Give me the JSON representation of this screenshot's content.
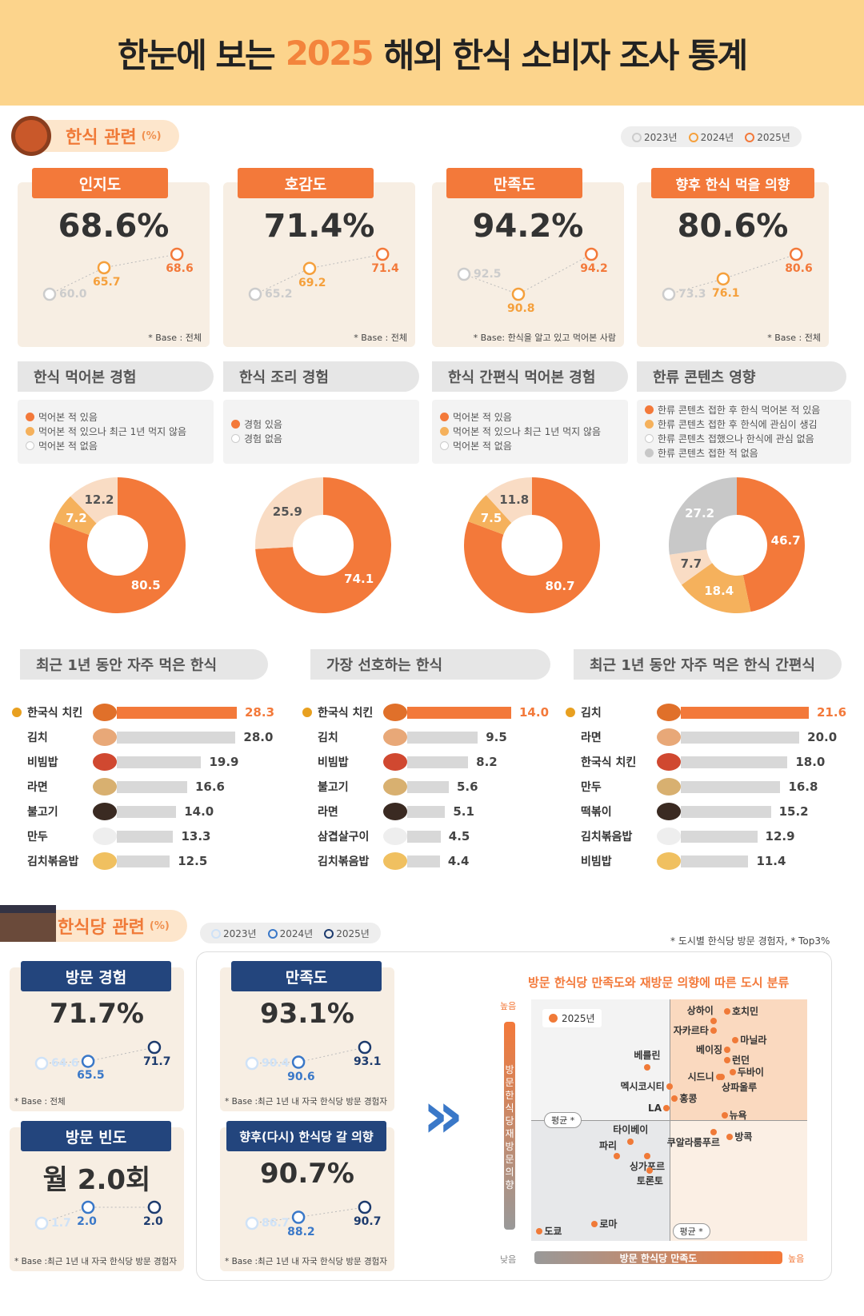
{
  "title": {
    "pre": "한눈에 보는",
    "year": "2025",
    "post": "해외 한식 소비자 조사 통계"
  },
  "section1": {
    "label": "한식 관련",
    "unit": "(%)",
    "legend": [
      "2023년",
      "2024년",
      "2025년"
    ]
  },
  "kpis": [
    {
      "tab": "인지도",
      "value": "68.6%",
      "points": [
        60.0,
        65.7,
        68.6
      ],
      "labels": [
        "60.0",
        "65.7",
        "68.6"
      ],
      "base": "* Base : 전체"
    },
    {
      "tab": "호감도",
      "value": "71.4%",
      "points": [
        65.2,
        69.2,
        71.4
      ],
      "labels": [
        "65.2",
        "69.2",
        "71.4"
      ],
      "base": "* Base : 전체"
    },
    {
      "tab": "만족도",
      "value": "94.2%",
      "points": [
        92.5,
        90.8,
        94.2
      ],
      "labels": [
        "92.5",
        "90.8",
        "94.2"
      ],
      "base": "* Base: 한식을 알고 있고 먹어본 사람"
    },
    {
      "tab": "향후 한식 먹을 의향",
      "value": "80.6%",
      "points": [
        73.3,
        76.1,
        80.6
      ],
      "labels": [
        "73.3",
        "76.1",
        "80.6"
      ],
      "base": "* Base : 전체"
    }
  ],
  "experience": [
    {
      "title": "한식 먹어본 경험",
      "legend": [
        "먹어본 적 있음",
        "먹어본 적 있으나 최근 1년 먹지 않음",
        "먹어본 적 없음"
      ],
      "values": [
        80.5,
        7.2,
        12.2
      ],
      "labels": [
        "80.5",
        "7.2",
        "12.2"
      ]
    },
    {
      "title": "한식 조리 경험",
      "legend": [
        "경험 있음",
        "경험 없음"
      ],
      "values": [
        74.1,
        25.9
      ],
      "labels": [
        "74.1",
        "25.9"
      ]
    },
    {
      "title": "한식 간편식 먹어본 경험",
      "legend": [
        "먹어본 적 있음",
        "먹어본 적 있으나 최근 1년 먹지 않음",
        "먹어본 적 없음"
      ],
      "values": [
        80.7,
        7.5,
        11.8
      ],
      "labels": [
        "80.7",
        "7.5",
        "11.8"
      ]
    },
    {
      "title": "한류 콘텐츠 영향",
      "legend": [
        "한류 콘텐츠 접한 후 한식 먹어본 적 있음",
        "한류 콘텐츠 접한 후 한식에 관심이 생김",
        "한류 콘텐츠 접했으나 한식에 관심 없음",
        "한류 콘텐츠 접한 적 없음"
      ],
      "values": [
        46.7,
        18.4,
        7.7,
        27.2
      ],
      "labels": [
        "46.7",
        "18.4",
        "7.7",
        "27.2"
      ]
    }
  ],
  "rankings": [
    {
      "title": "최근 1년 동안 자주 먹은 한식",
      "items": [
        [
          "한국식 치킨",
          "28.3"
        ],
        [
          "김치",
          "28.0"
        ],
        [
          "비빔밥",
          "19.9"
        ],
        [
          "라면",
          "16.6"
        ],
        [
          "불고기",
          "14.0"
        ],
        [
          "만두",
          "13.3"
        ],
        [
          "김치볶음밥",
          "12.5"
        ]
      ]
    },
    {
      "title": "가장 선호하는 한식",
      "items": [
        [
          "한국식 치킨",
          "14.0"
        ],
        [
          "김치",
          "9.5"
        ],
        [
          "비빔밥",
          "8.2"
        ],
        [
          "불고기",
          "5.6"
        ],
        [
          "라면",
          "5.1"
        ],
        [
          "삼겹살구이",
          "4.5"
        ],
        [
          "김치볶음밥",
          "4.4"
        ]
      ]
    },
    {
      "title": "최근 1년 동안 자주 먹은 한식 간편식",
      "items": [
        [
          "김치",
          "21.6"
        ],
        [
          "라면",
          "20.0"
        ],
        [
          "한국식 치킨",
          "18.0"
        ],
        [
          "만두",
          "16.8"
        ],
        [
          "떡볶이",
          "15.2"
        ],
        [
          "김치볶음밥",
          "12.9"
        ],
        [
          "비빔밥",
          "11.4"
        ]
      ]
    }
  ],
  "section2": {
    "label": "한식당 관련",
    "unit": "(%)",
    "legend": [
      "2023년",
      "2024년",
      "2025년"
    ],
    "note": "* 도시별 한식당 방문 경험자, * Top3%"
  },
  "restaurant": [
    {
      "tab": "방문 경험",
      "value": "71.7%",
      "points": [
        64.6,
        65.5,
        71.7
      ],
      "labels": [
        "64.6",
        "65.5",
        "71.7"
      ],
      "base": "* Base : 전체"
    },
    {
      "tab": "만족도",
      "value": "93.1%",
      "points": [
        90.4,
        90.6,
        93.1
      ],
      "labels": [
        "90.4",
        "90.6",
        "93.1"
      ],
      "base": "* Base :최근 1년 내 자국 한식당 방문 경험자"
    },
    {
      "tab": "방문 빈도",
      "value": "월 2.0회",
      "points": [
        1.7,
        2.0,
        2.0
      ],
      "labels": [
        "1.7",
        "2.0",
        "2.0"
      ],
      "base": "* Base :최근 1년 내 자국 한식당 방문 경험자"
    },
    {
      "tab": "향후(다시) 한식당 갈 의향",
      "value": "90.7%",
      "points": [
        86.7,
        88.2,
        90.7
      ],
      "labels": [
        "86.7",
        "88.2",
        "90.7"
      ],
      "base": "* Base :최근 1년 내 자국 한식당 방문 경험자"
    }
  ],
  "chart_data": {
    "type": "scatter",
    "title": "방문 한식당 만족도와 재방문 의향에 따른 도시 분류",
    "xlabel": "방문 한식당 만족도",
    "ylabel": "방문 한식당 재방문 의향",
    "x_low": "낮음",
    "x_high": "높음",
    "y_low": "낮음",
    "y_high": "높음",
    "legend": "2025년",
    "avg_label": "평균 *",
    "avg": [
      50,
      50
    ],
    "xlim": [
      0,
      100
    ],
    "ylim": [
      0,
      100
    ],
    "points": [
      {
        "name": "상하이",
        "x": 66,
        "y": 91
      },
      {
        "name": "호치민",
        "x": 71,
        "y": 95
      },
      {
        "name": "자카르타",
        "x": 66,
        "y": 87
      },
      {
        "name": "마닐라",
        "x": 74,
        "y": 83
      },
      {
        "name": "베이징",
        "x": 71,
        "y": 79
      },
      {
        "name": "런던",
        "x": 71,
        "y": 75
      },
      {
        "name": "두바이",
        "x": 73,
        "y": 70
      },
      {
        "name": "시드니",
        "x": 68,
        "y": 68
      },
      {
        "name": "상파울루",
        "x": 69,
        "y": 68
      },
      {
        "name": "베를린",
        "x": 42,
        "y": 72
      },
      {
        "name": "멕시코시티",
        "x": 50,
        "y": 64
      },
      {
        "name": "홍콩",
        "x": 52,
        "y": 59
      },
      {
        "name": "LA",
        "x": 49,
        "y": 55
      },
      {
        "name": "뉴욕",
        "x": 70,
        "y": 52
      },
      {
        "name": "쿠알라룸푸르",
        "x": 66,
        "y": 45
      },
      {
        "name": "방콕",
        "x": 72,
        "y": 43
      },
      {
        "name": "타이베이",
        "x": 36,
        "y": 41
      },
      {
        "name": "파리",
        "x": 31,
        "y": 35
      },
      {
        "name": "싱가포르",
        "x": 42,
        "y": 35
      },
      {
        "name": "토론토",
        "x": 43,
        "y": 29
      },
      {
        "name": "로마",
        "x": 23,
        "y": 7
      },
      {
        "name": "도쿄",
        "x": 3,
        "y": 4
      }
    ]
  }
}
